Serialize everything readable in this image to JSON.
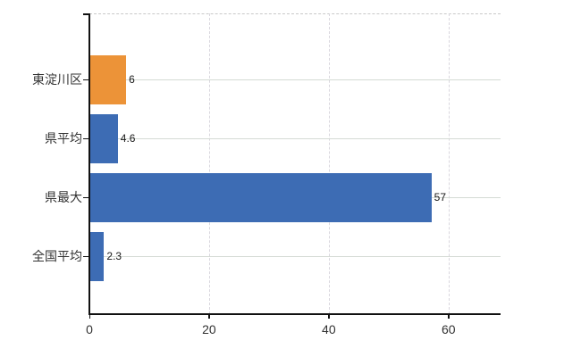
{
  "chart_data": {
    "type": "bar",
    "orientation": "horizontal",
    "categories": [
      "東淀川区",
      "県平均",
      "県最大",
      "全国平均"
    ],
    "values": [
      6,
      4.6,
      57,
      2.3
    ],
    "value_labels": [
      "6",
      "4.6",
      "57",
      "2.3"
    ],
    "series": [
      {
        "name": "highlighted-category",
        "indices": [
          0
        ],
        "color": "#EC9338"
      },
      {
        "name": "reference-categories",
        "indices": [
          1,
          2,
          3
        ],
        "color": "#3D6CB4"
      }
    ],
    "bar_colors": [
      "#EC9338",
      "#3D6CB4",
      "#3D6CB4",
      "#3D6CB4"
    ],
    "x_ticks": [
      0,
      20,
      40,
      60
    ],
    "x_tick_labels": [
      "0",
      "20",
      "40",
      "60"
    ],
    "axis_range": [
      0,
      68.7
    ],
    "grid": true,
    "legend": false
  },
  "colors": {
    "background": "#FFFFFF",
    "axis": "#111111",
    "h_gridline": "#D4DAD4",
    "v_gridline": "#D9D7DE",
    "top_border": "#C9C9C9",
    "category_text": "#333333",
    "tick_text": "#333333",
    "value_text": "#1A1A1A",
    "bar_orange": "#EC9338",
    "bar_blue": "#3D6CB4"
  }
}
